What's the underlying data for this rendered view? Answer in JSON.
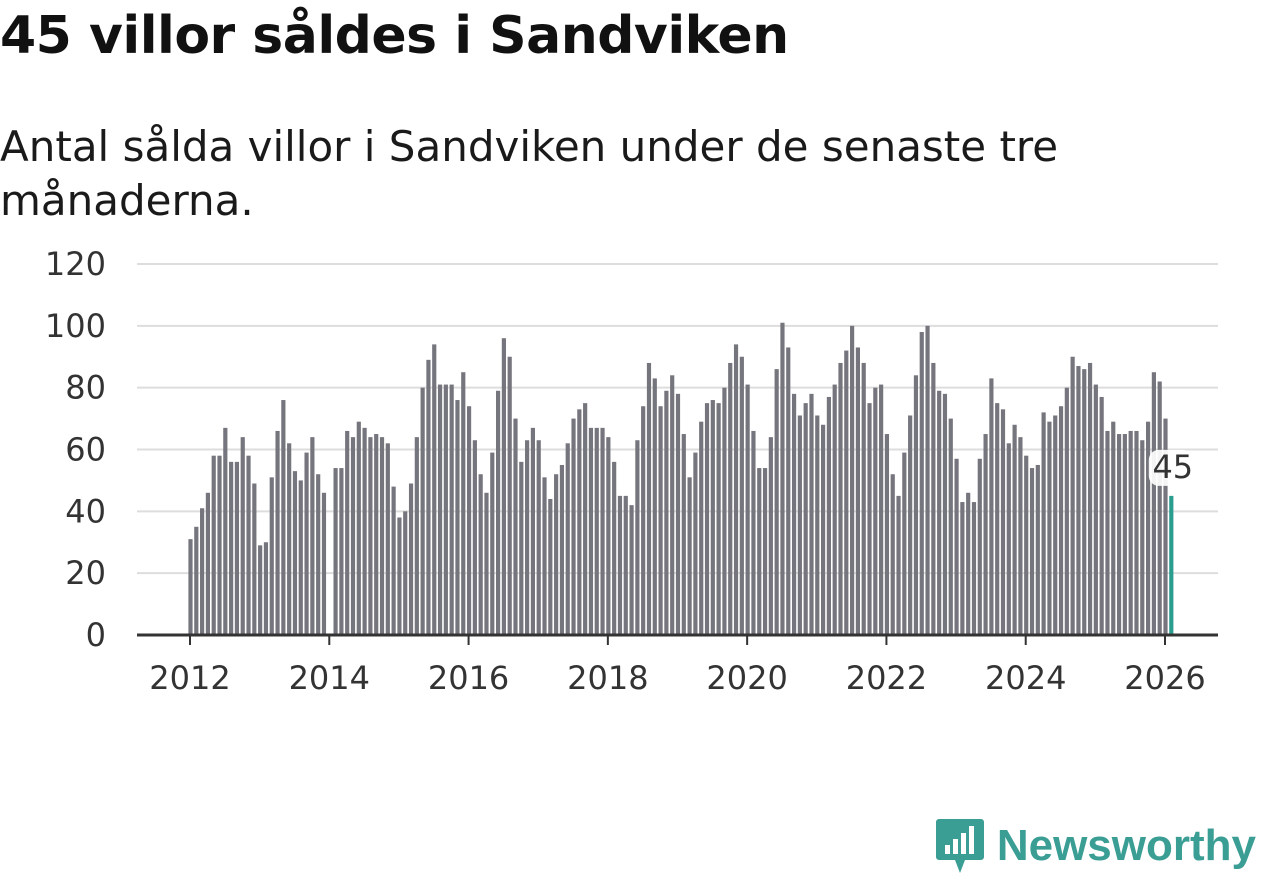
{
  "header": {
    "title": "45 villor såldes i Sandviken",
    "subtitle": "Antal sålda villor i Sandviken under de senaste tre månaderna."
  },
  "colors": {
    "bar": "#75757d",
    "highlight": "#2a9d8f",
    "grid": "#dddddd",
    "axis": "#333333",
    "brand": "#3a9e94"
  },
  "brand": {
    "name": "Newsworthy"
  },
  "chart_data": {
    "type": "bar",
    "title": "45 villor såldes i Sandviken",
    "subtitle": "Antal sålda villor i Sandviken under de senaste tre månaderna.",
    "xlabel": "",
    "ylabel": "",
    "ylim": [
      0,
      120
    ],
    "yticks": [
      0,
      20,
      40,
      60,
      80,
      100,
      120
    ],
    "xticks": [
      2012,
      2014,
      2016,
      2018,
      2020,
      2022,
      2024,
      2026
    ],
    "grid": true,
    "start": {
      "year": 2012,
      "month": 1
    },
    "values": [
      31,
      35,
      41,
      46,
      58,
      58,
      67,
      56,
      56,
      64,
      58,
      49,
      29,
      30,
      51,
      66,
      76,
      62,
      53,
      50,
      59,
      64,
      52,
      46,
      null,
      54,
      54,
      66,
      64,
      69,
      67,
      64,
      65,
      64,
      62,
      48,
      38,
      40,
      49,
      64,
      80,
      89,
      94,
      81,
      81,
      81,
      76,
      85,
      74,
      63,
      52,
      46,
      59,
      79,
      96,
      90,
      70,
      56,
      63,
      67,
      63,
      51,
      44,
      52,
      55,
      62,
      70,
      73,
      75,
      67,
      67,
      67,
      64,
      56,
      45,
      45,
      42,
      63,
      74,
      88,
      83,
      74,
      79,
      84,
      78,
      65,
      51,
      59,
      69,
      75,
      76,
      75,
      80,
      88,
      94,
      90,
      81,
      66,
      54,
      54,
      64,
      86,
      101,
      93,
      78,
      71,
      75,
      78,
      71,
      68,
      77,
      81,
      88,
      92,
      100,
      93,
      88,
      75,
      80,
      81,
      65,
      52,
      45,
      59,
      71,
      84,
      98,
      100,
      88,
      79,
      78,
      70,
      57,
      43,
      46,
      43,
      57,
      65,
      83,
      75,
      73,
      62,
      68,
      64,
      58,
      54,
      55,
      72,
      69,
      71,
      74,
      80,
      90,
      87,
      86,
      88,
      81,
      77,
      66,
      69,
      65,
      65,
      66,
      66,
      63,
      69,
      85,
      82,
      70,
      45
    ],
    "highlight": {
      "label": "45",
      "value": 45,
      "index": 169
    }
  }
}
